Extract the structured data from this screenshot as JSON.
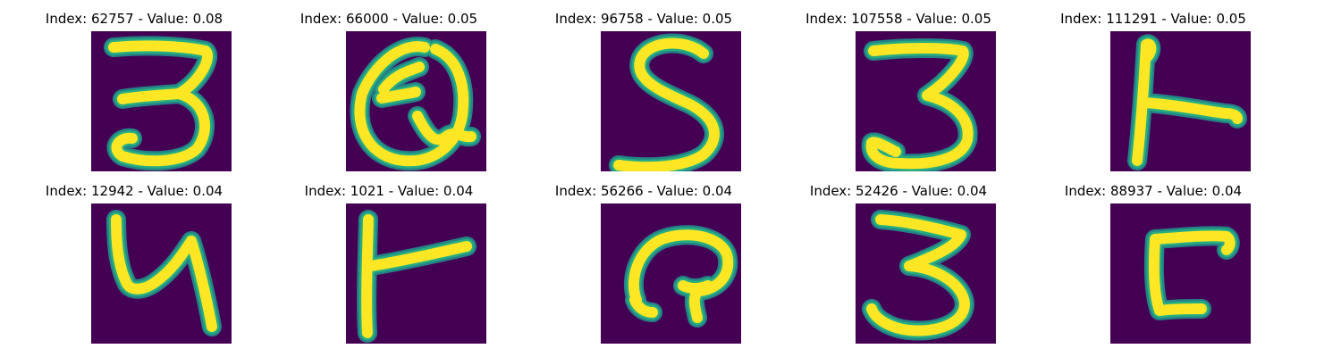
{
  "colors": {
    "background": "#440154",
    "foreground": "#fde725",
    "edge": "#27ad81",
    "mid": "#21918c"
  },
  "panels": [
    {
      "title": "Index: 62757 - Value: 0.08",
      "index": "62757",
      "value": "0.08",
      "glyph": "3"
    },
    {
      "title": "Index: 66000 - Value: 0.05",
      "index": "66000",
      "value": "0.05",
      "glyph": "Q"
    },
    {
      "title": "Index: 96758 - Value: 0.05",
      "index": "96758",
      "value": "0.05",
      "glyph": "S"
    },
    {
      "title": "Index: 107558 - Value: 0.05",
      "index": "107558",
      "value": "0.05",
      "glyph": "3"
    },
    {
      "title": "Index: 111291 - Value: 0.05",
      "index": "111291",
      "value": "0.05",
      "glyph": "T"
    },
    {
      "title": "Index: 12942 - Value: 0.04",
      "index": "12942",
      "value": "0.04",
      "glyph": "4"
    },
    {
      "title": "Index: 1021 - Value: 0.04",
      "index": "1021",
      "value": "0.04",
      "glyph": "T"
    },
    {
      "title": "Index: 56266 - Value: 0.04",
      "index": "56266",
      "value": "0.04",
      "glyph": "Q"
    },
    {
      "title": "Index: 52426 - Value: 0.04",
      "index": "52426",
      "value": "0.04",
      "glyph": "3"
    },
    {
      "title": "Index: 88937 - Value: 0.04",
      "index": "88937",
      "value": "0.04",
      "glyph": "F"
    }
  ]
}
